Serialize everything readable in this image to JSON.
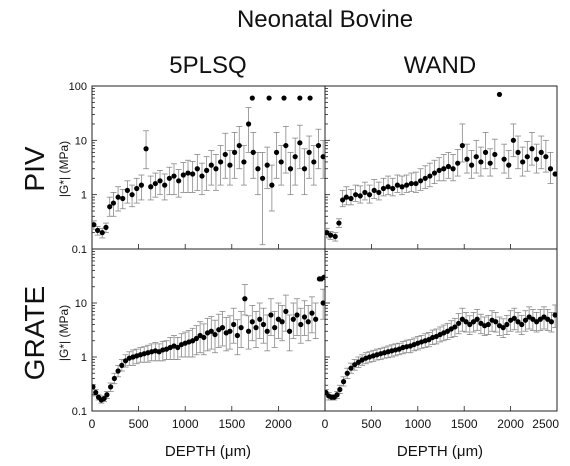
{
  "figure": {
    "title": "Neonatal Bovine",
    "col_labels": [
      "5PLSQ",
      "WAND"
    ],
    "row_labels": [
      "PIV",
      "GRATE"
    ],
    "ylabel": "|G*| (MPa)",
    "xlabel": "DEPTH (μm)",
    "yticks": [
      "0.1",
      "1",
      "10",
      "100"
    ],
    "xticks_left": [
      "0",
      "500",
      "1000",
      "1500",
      "2000"
    ],
    "xticks_right": [
      "0",
      "500",
      "1000",
      "1500",
      "2000",
      "2500"
    ]
  },
  "chart_data": [
    {
      "type": "scatter",
      "panel": "PIV / 5PLSQ",
      "y_scale": "log",
      "xlim": [
        0,
        2500
      ],
      "ylim": [
        0.1,
        100
      ],
      "x": [
        20,
        60,
        110,
        150,
        190,
        230,
        280,
        330,
        380,
        430,
        480,
        530,
        580,
        630,
        680,
        730,
        780,
        830,
        880,
        930,
        980,
        1030,
        1080,
        1130,
        1180,
        1230,
        1280,
        1330,
        1380,
        1430,
        1480,
        1530,
        1580,
        1630,
        1680,
        1730,
        1780,
        1830,
        1880,
        1930,
        1980,
        2030,
        2080,
        2130,
        2180,
        2230,
        2280,
        2330,
        2380,
        2430,
        2480
      ],
      "y": [
        0.28,
        0.22,
        0.2,
        0.25,
        0.6,
        0.7,
        0.9,
        0.85,
        1.2,
        1.0,
        1.3,
        1.5,
        7.0,
        1.4,
        1.6,
        1.8,
        1.5,
        2.0,
        2.2,
        1.8,
        2.3,
        2.5,
        2.4,
        3.0,
        2.2,
        2.8,
        3.5,
        3.0,
        4.0,
        5.5,
        3.5,
        6.0,
        8.0,
        4.0,
        20.0,
        6.0,
        3.0,
        2.0,
        3.5,
        1.5,
        6.0,
        4.0,
        8.0,
        3.0,
        5.0,
        9.0,
        3.0,
        6.0,
        4.0,
        8.0,
        5.0
      ],
      "err_lo": [
        0.05,
        0.04,
        0.04,
        0.05,
        0.2,
        0.3,
        0.4,
        0.3,
        0.5,
        0.4,
        0.6,
        0.7,
        4.0,
        0.6,
        0.7,
        0.8,
        0.7,
        1.0,
        1.2,
        0.9,
        1.2,
        1.4,
        1.3,
        1.8,
        1.2,
        1.6,
        2.0,
        1.8,
        2.5,
        3.5,
        2.0,
        4.0,
        5.0,
        2.5,
        14.0,
        4.0,
        2.0,
        1.88,
        2.2,
        1.0,
        4.0,
        2.5,
        5.5,
        2.0,
        3.5,
        6.0,
        2.0,
        4.0,
        2.5,
        5.0,
        3.0
      ],
      "err_hi": [
        0.05,
        0.04,
        0.04,
        0.05,
        0.3,
        0.4,
        0.5,
        0.4,
        0.6,
        0.5,
        0.7,
        0.8,
        8.0,
        0.8,
        0.9,
        1.0,
        0.9,
        1.2,
        1.5,
        1.1,
        1.6,
        1.8,
        1.7,
        2.5,
        1.6,
        2.2,
        3.0,
        2.5,
        4.0,
        8.0,
        3.0,
        8.0,
        10.0,
        4.0,
        20.0,
        8.0,
        3.0,
        4.0,
        4.0,
        2.0,
        8.0,
        4.0,
        10.0,
        3.0,
        6.0,
        10.0,
        4.0,
        6.0,
        4.0,
        8.0,
        5.0
      ],
      "outliers_x": [
        1720,
        1900,
        2060,
        2230,
        2340
      ],
      "outliers_y": [
        60,
        60,
        60,
        60,
        60
      ]
    },
    {
      "type": "scatter",
      "panel": "PIV / WAND",
      "y_scale": "log",
      "xlim": [
        0,
        2500
      ],
      "ylim": [
        0.1,
        100
      ],
      "x": [
        20,
        60,
        110,
        150,
        190,
        230,
        280,
        330,
        380,
        430,
        480,
        530,
        580,
        630,
        680,
        730,
        780,
        830,
        880,
        930,
        980,
        1030,
        1080,
        1130,
        1180,
        1230,
        1280,
        1330,
        1380,
        1430,
        1480,
        1530,
        1580,
        1630,
        1680,
        1730,
        1780,
        1830,
        1880,
        1930,
        1980,
        2030,
        2080,
        2130,
        2180,
        2230,
        2280,
        2330,
        2380,
        2430,
        2480
      ],
      "y": [
        0.2,
        0.18,
        0.17,
        0.3,
        0.8,
        0.9,
        0.85,
        1.0,
        0.95,
        1.1,
        1.0,
        1.2,
        1.1,
        1.3,
        1.4,
        1.3,
        1.5,
        1.4,
        1.5,
        1.6,
        1.6,
        1.8,
        2.0,
        2.2,
        2.5,
        2.8,
        3.0,
        3.3,
        3.0,
        3.8,
        8.0,
        4.5,
        3.5,
        5.0,
        4.0,
        6.0,
        3.8,
        5.5,
        70.0,
        4.5,
        3.5,
        10.0,
        6.0,
        4.0,
        5.0,
        7.0,
        4.5,
        6.0,
        5.0,
        3.0,
        2.4
      ],
      "err_lo": [
        0.04,
        0.03,
        0.03,
        0.05,
        0.2,
        0.25,
        0.2,
        0.25,
        0.25,
        0.3,
        0.3,
        0.35,
        0.3,
        0.35,
        0.4,
        0.35,
        0.4,
        0.4,
        0.4,
        0.45,
        0.5,
        0.6,
        0.7,
        0.8,
        0.9,
        1.0,
        1.2,
        1.3,
        1.2,
        1.6,
        4.0,
        2.0,
        1.5,
        2.5,
        1.8,
        3.0,
        1.6,
        2.5,
        0.0,
        2.0,
        1.5,
        5.0,
        3.0,
        1.8,
        2.3,
        3.5,
        2.0,
        3.0,
        2.4,
        1.4,
        0.0
      ],
      "err_hi": [
        0.04,
        0.03,
        0.03,
        0.06,
        0.4,
        0.5,
        0.4,
        0.5,
        0.5,
        0.6,
        0.5,
        0.7,
        0.6,
        0.7,
        0.8,
        0.7,
        0.8,
        0.8,
        0.8,
        0.9,
        1.0,
        1.2,
        1.4,
        1.6,
        1.8,
        2.0,
        2.5,
        2.7,
        2.5,
        3.0,
        12.0,
        4.0,
        3.0,
        5.0,
        3.5,
        8.0,
        3.2,
        5.0,
        0.0,
        4.0,
        3.0,
        10.0,
        6.0,
        3.5,
        4.5,
        7.0,
        4.0,
        6.0,
        5.0,
        3.0,
        0.0
      ]
    },
    {
      "type": "scatter",
      "panel": "GRATE / 5PLSQ",
      "y_scale": "log",
      "xlim": [
        0,
        2500
      ],
      "ylim": [
        0.1,
        100
      ],
      "x": [
        10,
        40,
        70,
        100,
        130,
        160,
        200,
        240,
        280,
        320,
        360,
        400,
        440,
        480,
        520,
        560,
        600,
        640,
        680,
        720,
        760,
        800,
        840,
        880,
        920,
        960,
        1000,
        1040,
        1080,
        1120,
        1160,
        1200,
        1240,
        1280,
        1320,
        1360,
        1400,
        1440,
        1480,
        1520,
        1560,
        1600,
        1640,
        1680,
        1720,
        1760,
        1800,
        1840,
        1880,
        1920,
        1960,
        2000,
        2040,
        2080,
        2120,
        2160,
        2200,
        2240,
        2280,
        2320,
        2360,
        2400,
        2440,
        2480
      ],
      "y": [
        0.28,
        0.22,
        0.18,
        0.16,
        0.17,
        0.2,
        0.28,
        0.4,
        0.55,
        0.7,
        0.85,
        0.95,
        1.0,
        1.05,
        1.1,
        1.15,
        1.2,
        1.25,
        1.3,
        1.25,
        1.35,
        1.4,
        1.5,
        1.6,
        1.5,
        1.7,
        1.8,
        1.9,
        2.0,
        2.2,
        2.5,
        2.3,
        2.8,
        3.0,
        2.6,
        3.2,
        3.5,
        2.8,
        3.0,
        4.0,
        2.5,
        3.5,
        12.0,
        3.0,
        4.5,
        3.5,
        5.0,
        4.0,
        3.0,
        6.0,
        3.5,
        5.0,
        4.5,
        7.0,
        3.0,
        5.0,
        6.0,
        4.0,
        5.5,
        4.5,
        6.5,
        5.0,
        28.0,
        10.0
      ],
      "err_lo": [
        0.03,
        0.03,
        0.02,
        0.02,
        0.02,
        0.03,
        0.05,
        0.08,
        0.12,
        0.15,
        0.2,
        0.25,
        0.3,
        0.3,
        0.3,
        0.35,
        0.4,
        0.4,
        0.45,
        0.4,
        0.5,
        0.5,
        0.6,
        0.7,
        0.6,
        0.7,
        0.8,
        0.9,
        1.0,
        1.1,
        1.3,
        1.2,
        1.5,
        1.6,
        1.4,
        1.7,
        1.9,
        1.5,
        1.6,
        2.2,
        1.4,
        2.0,
        6.0,
        1.6,
        2.5,
        2.0,
        2.8,
        2.2,
        1.7,
        3.5,
        2.0,
        2.8,
        2.5,
        4.0,
        1.7,
        2.8,
        3.5,
        2.2,
        3.0,
        2.5,
        3.7,
        2.8,
        0.0,
        5.0
      ],
      "err_hi": [
        0.03,
        0.03,
        0.02,
        0.02,
        0.02,
        0.03,
        0.05,
        0.1,
        0.15,
        0.2,
        0.25,
        0.3,
        0.35,
        0.35,
        0.4,
        0.4,
        0.45,
        0.5,
        0.55,
        0.5,
        0.6,
        0.6,
        0.8,
        0.9,
        0.8,
        1.0,
        1.1,
        1.2,
        1.4,
        1.6,
        2.0,
        1.8,
        2.4,
        2.6,
        2.2,
        3.0,
        3.5,
        2.6,
        2.8,
        4.0,
        2.4,
        3.5,
        10.0,
        2.8,
        4.5,
        3.5,
        5.0,
        4.0,
        3.0,
        6.0,
        3.5,
        5.0,
        4.5,
        7.0,
        3.0,
        5.0,
        6.0,
        4.0,
        5.5,
        4.5,
        6.5,
        5.0,
        0.0,
        8.0
      ],
      "outliers_x": [
        2460,
        2490
      ],
      "outliers_y": [
        28,
        30
      ]
    },
    {
      "type": "scatter",
      "panel": "GRATE / WAND",
      "y_scale": "log",
      "xlim": [
        0,
        2500
      ],
      "ylim": [
        0.1,
        100
      ],
      "x": [
        10,
        40,
        70,
        100,
        130,
        160,
        200,
        240,
        280,
        320,
        360,
        400,
        440,
        480,
        520,
        560,
        600,
        640,
        680,
        720,
        760,
        800,
        840,
        880,
        920,
        960,
        1000,
        1040,
        1080,
        1120,
        1160,
        1200,
        1240,
        1280,
        1320,
        1360,
        1400,
        1440,
        1480,
        1520,
        1560,
        1600,
        1640,
        1680,
        1720,
        1760,
        1800,
        1840,
        1880,
        1920,
        1960,
        2000,
        2040,
        2080,
        2120,
        2160,
        2200,
        2240,
        2280,
        2320,
        2360,
        2400,
        2440,
        2480
      ],
      "y": [
        0.22,
        0.19,
        0.18,
        0.18,
        0.2,
        0.25,
        0.35,
        0.5,
        0.62,
        0.72,
        0.8,
        0.88,
        0.95,
        1.0,
        1.05,
        1.1,
        1.15,
        1.2,
        1.25,
        1.3,
        1.35,
        1.4,
        1.5,
        1.55,
        1.6,
        1.7,
        1.8,
        1.9,
        2.0,
        2.1,
        2.3,
        2.4,
        2.6,
        2.8,
        3.0,
        3.3,
        3.6,
        4.2,
        5.0,
        4.5,
        4.0,
        4.5,
        5.0,
        4.2,
        3.8,
        4.0,
        4.8,
        4.5,
        3.8,
        3.5,
        4.0,
        4.8,
        5.2,
        4.5,
        4.0,
        4.8,
        5.5,
        5.0,
        4.5,
        5.0,
        5.5,
        5.0,
        4.5,
        6.0
      ],
      "err_lo": [
        0.03,
        0.03,
        0.02,
        0.02,
        0.03,
        0.04,
        0.06,
        0.1,
        0.12,
        0.15,
        0.16,
        0.18,
        0.2,
        0.2,
        0.22,
        0.22,
        0.25,
        0.25,
        0.28,
        0.3,
        0.3,
        0.3,
        0.35,
        0.35,
        0.4,
        0.4,
        0.45,
        0.45,
        0.5,
        0.55,
        0.6,
        0.65,
        0.7,
        0.8,
        0.9,
        1.0,
        1.2,
        1.5,
        2.0,
        1.6,
        1.4,
        1.6,
        1.9,
        1.5,
        1.3,
        1.4,
        1.8,
        1.6,
        1.3,
        1.2,
        1.4,
        1.8,
        2.0,
        1.6,
        1.4,
        1.8,
        2.2,
        1.9,
        1.6,
        1.9,
        2.2,
        1.9,
        1.6,
        2.5
      ],
      "err_hi": [
        0.03,
        0.03,
        0.02,
        0.02,
        0.03,
        0.05,
        0.08,
        0.12,
        0.15,
        0.18,
        0.2,
        0.22,
        0.25,
        0.25,
        0.28,
        0.3,
        0.3,
        0.32,
        0.35,
        0.38,
        0.4,
        0.4,
        0.45,
        0.5,
        0.5,
        0.55,
        0.6,
        0.6,
        0.7,
        0.75,
        0.85,
        0.9,
        1.0,
        1.1,
        1.2,
        1.4,
        1.6,
        2.2,
        3.0,
        2.2,
        1.8,
        2.2,
        2.6,
        2.0,
        1.7,
        1.9,
        2.4,
        2.2,
        1.7,
        1.6,
        1.9,
        2.4,
        2.8,
        2.2,
        1.9,
        2.4,
        3.0,
        2.6,
        2.2,
        2.6,
        3.0,
        2.6,
        2.2,
        3.2
      ]
    }
  ]
}
